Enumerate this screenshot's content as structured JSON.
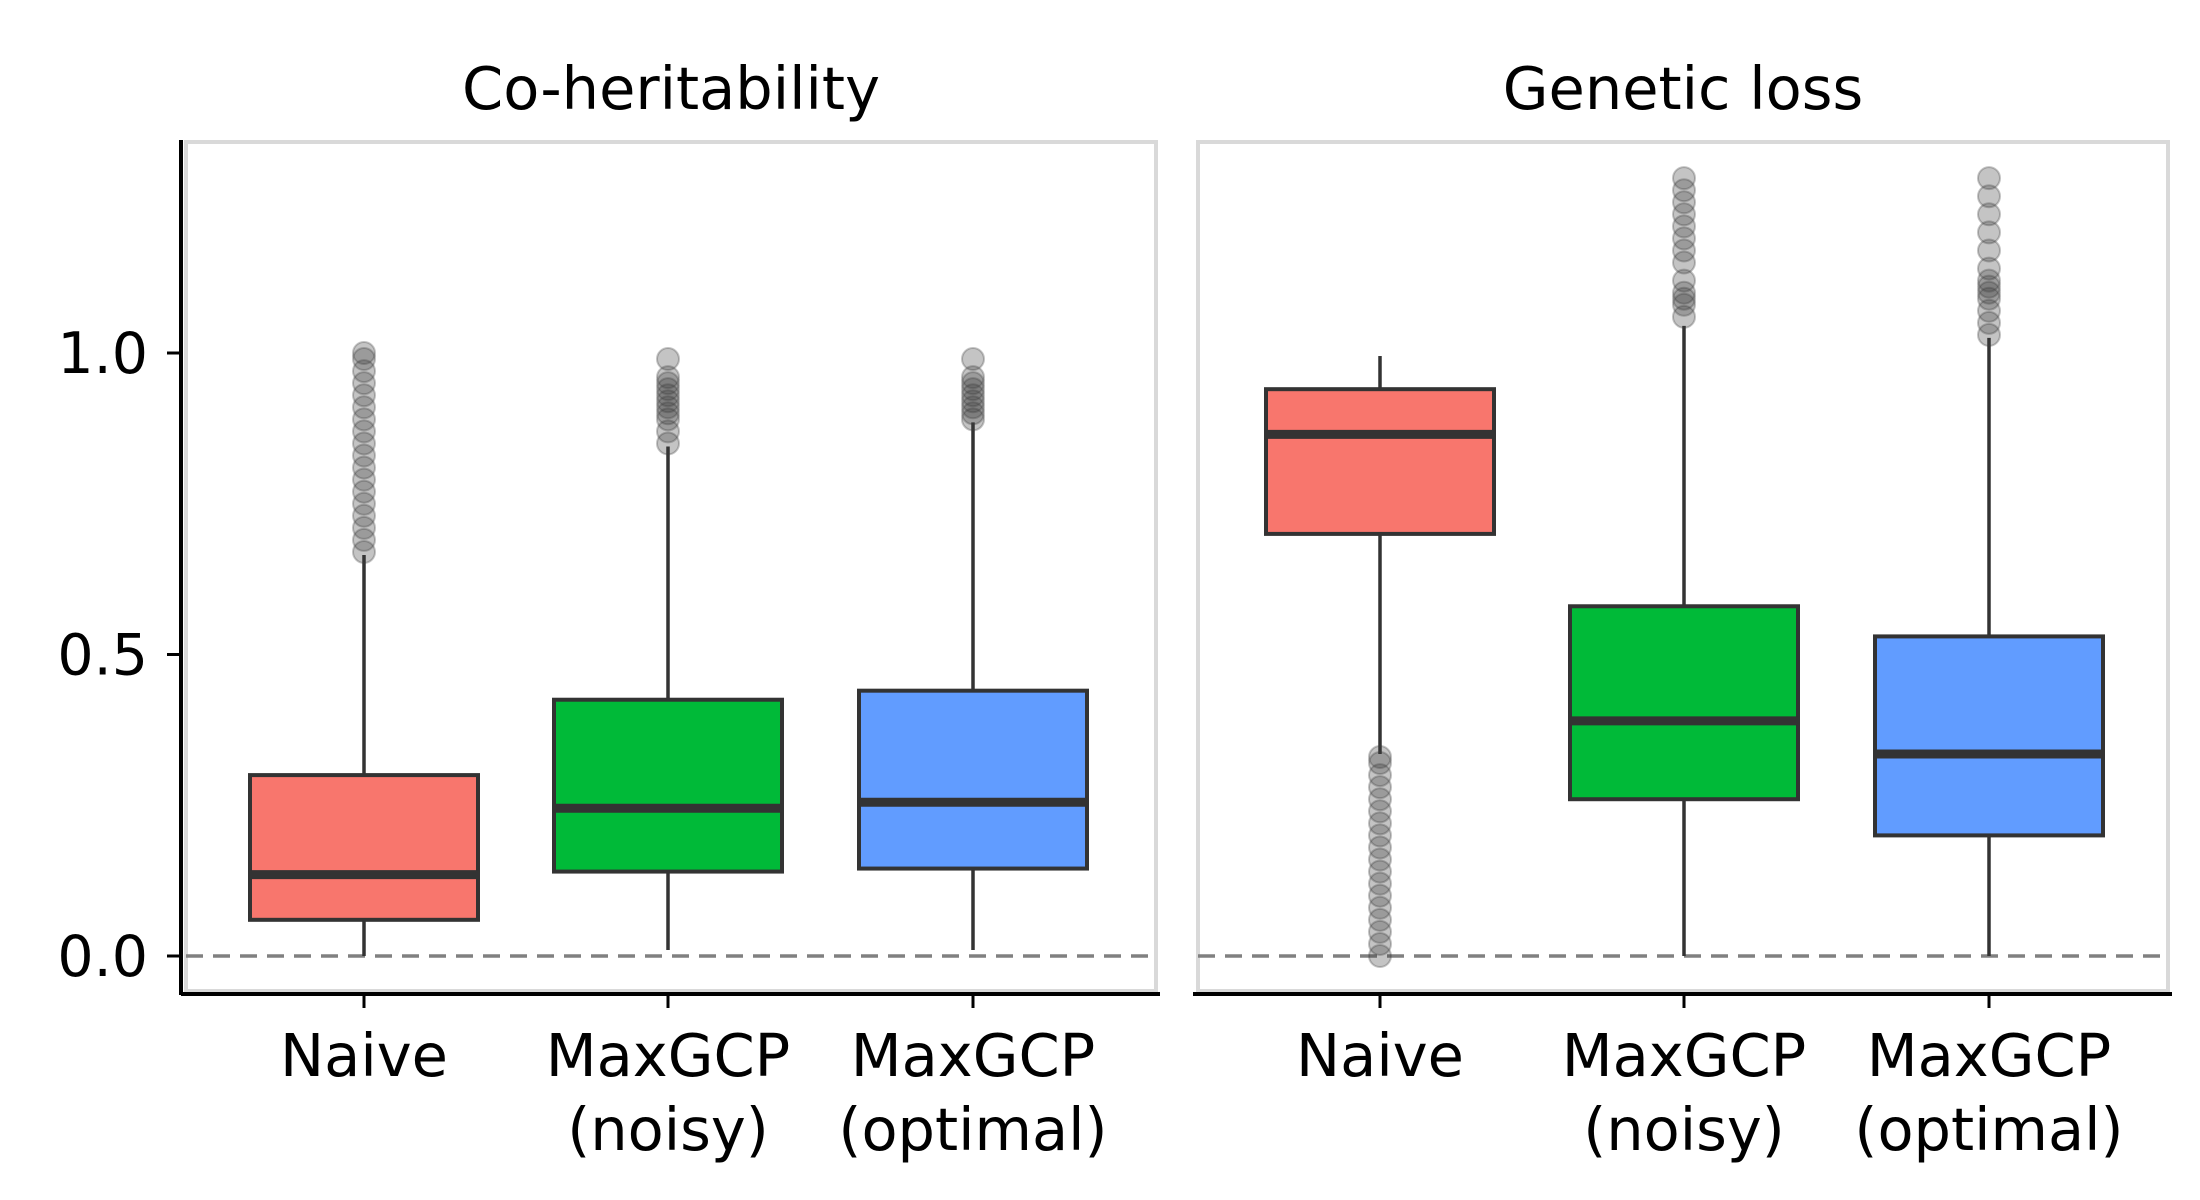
{
  "chart_data": {
    "type": "box",
    "y_ticks": [
      "0.0",
      "0.5",
      "1.0"
    ],
    "ylim": [
      -0.07,
      1.35
    ],
    "reference_line": {
      "y": 0,
      "style": "dashed"
    },
    "grid": false,
    "legend": "none",
    "colors": {
      "Naive": "#F8766D",
      "MaxGCP (noisy)": "#00BA38",
      "MaxGCP (optimal)": "#619CFF"
    },
    "panels": [
      {
        "title": "Co-heritability",
        "categories": [
          {
            "line1": "Naive",
            "line2": "",
            "color": "#F8766D",
            "q1": 0.06,
            "median": 0.135,
            "q3": 0.3,
            "whisker_low": 0.0,
            "whisker_high": 0.665,
            "outliers": [
              0.67,
              0.69,
              0.71,
              0.73,
              0.75,
              0.77,
              0.79,
              0.81,
              0.83,
              0.85,
              0.87,
              0.89,
              0.91,
              0.93,
              0.95,
              0.97,
              0.99,
              1.0
            ]
          },
          {
            "line1": "MaxGCP",
            "line2": "(noisy)",
            "color": "#00BA38",
            "q1": 0.14,
            "median": 0.245,
            "q3": 0.425,
            "whisker_low": 0.01,
            "whisker_high": 0.845,
            "outliers": [
              0.85,
              0.87,
              0.89,
              0.9,
              0.91,
              0.92,
              0.93,
              0.94,
              0.95,
              0.96,
              0.99
            ]
          },
          {
            "line1": "MaxGCP",
            "line2": "(optimal)",
            "color": "#619CFF",
            "q1": 0.145,
            "median": 0.255,
            "q3": 0.44,
            "whisker_low": 0.01,
            "whisker_high": 0.885,
            "outliers": [
              0.89,
              0.9,
              0.91,
              0.92,
              0.93,
              0.94,
              0.95,
              0.96,
              0.99
            ]
          }
        ]
      },
      {
        "title": "Genetic loss",
        "categories": [
          {
            "line1": "Naive",
            "line2": "",
            "color": "#F8766D",
            "q1": 0.7,
            "median": 0.865,
            "q3": 0.94,
            "whisker_low": 0.335,
            "whisker_high": 0.995,
            "outliers": [
              0.0,
              0.02,
              0.04,
              0.06,
              0.08,
              0.1,
              0.12,
              0.14,
              0.16,
              0.18,
              0.2,
              0.22,
              0.24,
              0.26,
              0.28,
              0.3,
              0.32,
              0.33
            ]
          },
          {
            "line1": "MaxGCP",
            "line2": "(noisy)",
            "color": "#00BA38",
            "q1": 0.26,
            "median": 0.39,
            "q3": 0.58,
            "whisker_low": 0.0,
            "whisker_high": 1.045,
            "outliers": [
              1.06,
              1.08,
              1.09,
              1.1,
              1.12,
              1.15,
              1.17,
              1.19,
              1.21,
              1.23,
              1.25,
              1.27,
              1.29
            ]
          },
          {
            "line1": "MaxGCP",
            "line2": "(optimal)",
            "color": "#619CFF",
            "q1": 0.2,
            "median": 0.335,
            "q3": 0.53,
            "whisker_low": 0.0,
            "whisker_high": 1.025,
            "outliers": [
              1.03,
              1.05,
              1.07,
              1.09,
              1.1,
              1.11,
              1.12,
              1.14,
              1.17,
              1.2,
              1.23,
              1.26,
              1.29
            ]
          }
        ]
      }
    ]
  }
}
